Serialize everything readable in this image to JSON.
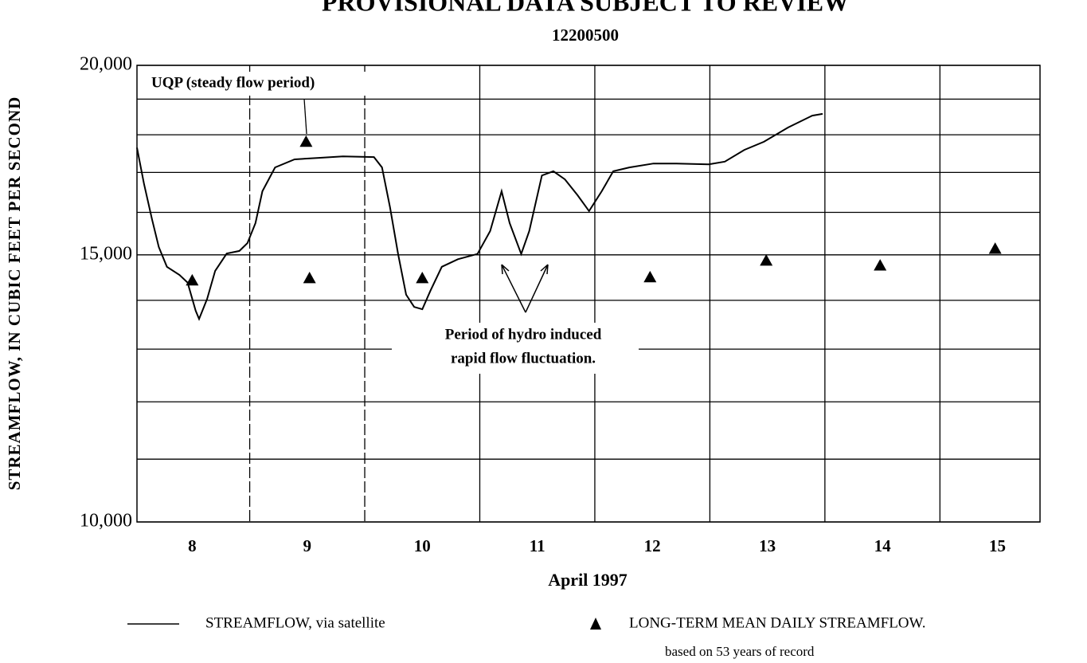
{
  "chart_data": {
    "type": "line",
    "title": "PROVISIONAL DATA SUBJECT TO REVIEW",
    "subtitle": "12200500",
    "y_label": "STREAMFLOW, IN CUBIC FEET PER SECOND",
    "x_label": "April 1997",
    "log_y": true,
    "grid": true,
    "xlim": [
      8.02,
      15.87
    ],
    "ylim": [
      10000,
      20000
    ],
    "yticks": [
      {
        "value": 10000,
        "label": "10,000"
      },
      {
        "value": 15000,
        "label": "15,000"
      },
      {
        "value": 20000,
        "label": "20,000"
      }
    ],
    "ygrid": [
      11000,
      12000,
      13000,
      14000,
      16000,
      17000,
      18000,
      19000
    ],
    "xticks": [
      {
        "value": 8.5,
        "label": "8"
      },
      {
        "value": 9.5,
        "label": "9"
      },
      {
        "value": 10.5,
        "label": "10"
      },
      {
        "value": 11.5,
        "label": "11"
      },
      {
        "value": 12.5,
        "label": "12"
      },
      {
        "value": 13.5,
        "label": "13"
      },
      {
        "value": 14.5,
        "label": "14"
      },
      {
        "value": 15.5,
        "label": "15"
      }
    ],
    "xgrid": [
      9,
      10,
      11,
      12,
      13,
      14,
      15
    ],
    "series": [
      {
        "name": "STREAMFLOW, via satellite",
        "color": "#000000",
        "marker": "line",
        "x": [
          8.02,
          8.08,
          8.15,
          8.21,
          8.28,
          8.39,
          8.46,
          8.53,
          8.56,
          8.63,
          8.7,
          8.8,
          8.91,
          8.98,
          9.05,
          9.11,
          9.22,
          9.39,
          9.6,
          9.81,
          10.08,
          10.15,
          10.22,
          10.29,
          10.36,
          10.43,
          10.5,
          10.57,
          10.67,
          10.81,
          10.98,
          11.09,
          11.19,
          11.26,
          11.36,
          11.43,
          11.54,
          11.64,
          11.74,
          11.85,
          11.95,
          12.06,
          12.16,
          12.3,
          12.51,
          12.71,
          12.99,
          13.13,
          13.3,
          13.47,
          13.68,
          13.89,
          13.98
        ],
        "values": [
          17650,
          16720,
          15840,
          15180,
          14730,
          14550,
          14380,
          13780,
          13610,
          14030,
          14640,
          15030,
          15090,
          15270,
          15740,
          16520,
          17130,
          17340,
          17380,
          17420,
          17400,
          17130,
          16120,
          15020,
          14120,
          13860,
          13810,
          14200,
          14730,
          14900,
          15020,
          15550,
          16520,
          15740,
          15020,
          15550,
          16920,
          17030,
          16820,
          16420,
          16030,
          16520,
          17030,
          17130,
          17230,
          17230,
          17210,
          17280,
          17590,
          17810,
          18200,
          18530,
          18580
        ]
      },
      {
        "name": "LONG-TERM MEAN DAILY STREAMFLOW.",
        "note": "based on 53 years of record",
        "color": "#000000",
        "marker": "triangle",
        "x": [
          8.5,
          9.52,
          10.5,
          12.48,
          13.49,
          14.48,
          15.48
        ],
        "values": [
          14430,
          14480,
          14480,
          14500,
          14870,
          14760,
          15140
        ]
      }
    ],
    "annotations": [
      {
        "text": "UQP (steady flow period)",
        "x": 9.49,
        "y": 17810
      },
      {
        "text": [
          "Period of hydro induced",
          "rapid flow fluctuation."
        ]
      }
    ]
  }
}
